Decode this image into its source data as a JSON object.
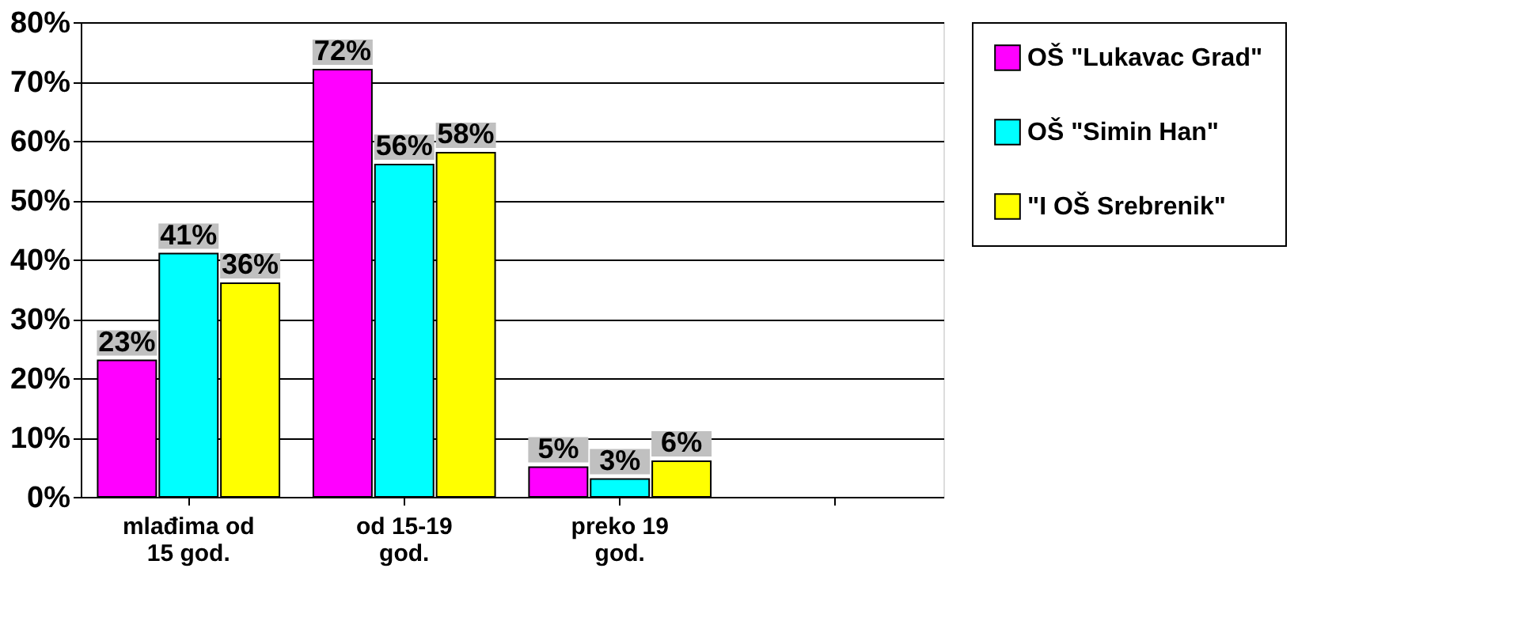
{
  "chart_data": {
    "type": "bar",
    "categories": [
      "mlađima od\n15 god.",
      "od 15-19\ngod.",
      "preko 19\ngod.",
      null
    ],
    "series": [
      {
        "name": "OŠ \"Lukavac Grad\"",
        "color": "#ff00ff",
        "values": [
          23,
          72,
          5,
          null
        ],
        "value_labels": [
          "23%",
          "72%",
          "5%",
          null
        ]
      },
      {
        "name": "OŠ \"Simin Han\"",
        "color": "#00ffff",
        "values": [
          41,
          56,
          3,
          null
        ],
        "value_labels": [
          "41%",
          "56%",
          "3%",
          null
        ]
      },
      {
        "name": "\"I OŠ Srebrenik\"",
        "color": "#ffff00",
        "values": [
          36,
          58,
          6,
          null
        ],
        "value_labels": [
          "36%",
          "58%",
          "6%",
          null
        ]
      }
    ],
    "ylim": [
      0,
      80
    ],
    "yticks": [
      {
        "value": 0,
        "label": "0%"
      },
      {
        "value": 10,
        "label": "10%"
      },
      {
        "value": 20,
        "label": "20%"
      },
      {
        "value": 30,
        "label": "30%"
      },
      {
        "value": 40,
        "label": "40%"
      },
      {
        "value": 50,
        "label": "50%"
      },
      {
        "value": 60,
        "label": "60%"
      },
      {
        "value": 70,
        "label": "70%"
      },
      {
        "value": 80,
        "label": "80%"
      }
    ],
    "grid": "y",
    "legend": "right"
  }
}
